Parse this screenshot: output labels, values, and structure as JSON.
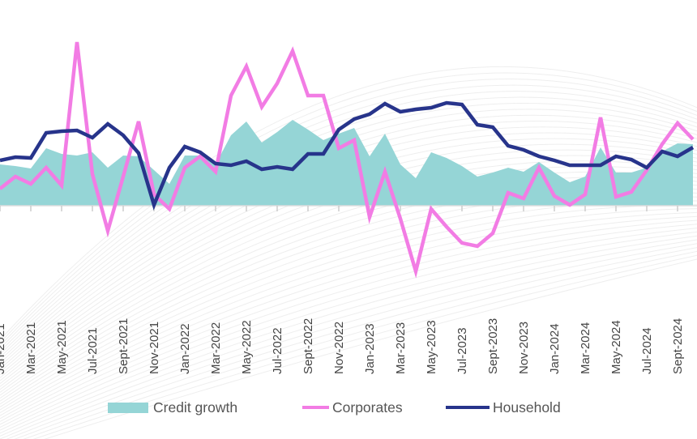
{
  "chart_data": {
    "type": "line",
    "title": "",
    "xlabel": "",
    "ylabel": "",
    "grid": false,
    "legend_position": "bottom",
    "categories": [
      "Jan-2021",
      "Feb-2021",
      "Mar-2021",
      "Apr-2021",
      "May-2021",
      "Jun-2021",
      "Jul-2021",
      "Aug-2021",
      "Sept-2021",
      "Oct-2021",
      "Nov-2021",
      "Dec-2021",
      "Jan-2022",
      "Feb-2022",
      "Mar-2022",
      "Apr-2022",
      "May-2022",
      "Jun-2022",
      "Jul-2022",
      "Aug-2022",
      "Sept-2022",
      "Oct-2022",
      "Nov-2022",
      "Dec-2022",
      "Jan-2023",
      "Feb-2023",
      "Mar-2023",
      "Apr-2023",
      "May-2023",
      "Jun-2023",
      "Jul-2023",
      "Aug-2023",
      "Sept-2023",
      "Oct-2023",
      "Nov-2023",
      "Dec-2023",
      "Jan-2024",
      "Feb-2024",
      "Mar-2024",
      "Apr-2024",
      "May-2024",
      "Jun-2024",
      "Jul-2024",
      "Aug-2024",
      "Sept-2024",
      "Oct-2024"
    ],
    "tick_labels": [
      "Jan-2021",
      "Mar-2021",
      "May-2021",
      "Jul-2021",
      "Sept-2021",
      "Nov-2021",
      "Jan-2022",
      "Mar-2022",
      "May-2022",
      "Jul-2022",
      "Sept-2022",
      "Nov-2022",
      "Jan-2023",
      "Mar-2023",
      "May-2023",
      "Jul-2023",
      "Sept-2023",
      "Nov-2023",
      "Jan-2024",
      "Mar-2024",
      "May-2024",
      "Jul-2024",
      "Sept-2024"
    ],
    "ylim": [
      -20,
      25
    ],
    "series": [
      {
        "name": "Credit growth",
        "kind": "area",
        "color": "#95d5d6",
        "values": [
          5.1,
          4.9,
          4.6,
          7.1,
          6.4,
          6.2,
          6.6,
          4.7,
          6.2,
          6.1,
          4.4,
          2.7,
          6.2,
          6.2,
          5.1,
          8.7,
          10.4,
          7.8,
          9.1,
          10.6,
          9.4,
          8.1,
          8.9,
          9.6,
          6.1,
          8.9,
          5.1,
          3.4,
          6.6,
          5.9,
          4.9,
          3.6,
          4.1,
          4.7,
          4.2,
          5.4,
          4.1,
          2.9,
          3.6,
          7.2,
          4.1,
          4.1,
          4.7,
          6.7,
          7.7,
          7.6
        ]
      },
      {
        "name": "Corporates",
        "kind": "line",
        "color": "#f27ce4",
        "values": [
          2.1,
          3.6,
          2.7,
          4.7,
          2.5,
          20.2,
          3.9,
          -3.1,
          3.6,
          10.4,
          1.4,
          -0.4,
          4.7,
          6.1,
          4.2,
          13.6,
          17.2,
          12.2,
          15.1,
          19.1,
          13.6,
          13.6,
          7.1,
          8.1,
          -1.4,
          4.2,
          -1.6,
          -8.1,
          -0.4,
          -2.6,
          -4.6,
          -5.0,
          -3.4,
          1.6,
          0.9,
          4.7,
          1.2,
          0.1,
          1.4,
          10.9,
          1.1,
          1.7,
          4.4,
          7.6,
          10.2,
          8.2
        ]
      },
      {
        "name": "Household",
        "kind": "line",
        "color": "#27348b",
        "values": [
          5.6,
          6.0,
          5.9,
          9.0,
          9.2,
          9.3,
          8.4,
          10.1,
          8.7,
          6.5,
          0.1,
          4.7,
          7.3,
          6.6,
          5.2,
          5.0,
          5.5,
          4.5,
          4.8,
          4.5,
          6.4,
          6.4,
          9.4,
          10.7,
          11.3,
          12.6,
          11.6,
          11.9,
          12.1,
          12.7,
          12.5,
          10.0,
          9.7,
          7.4,
          6.9,
          6.1,
          5.6,
          5.0,
          5.0,
          5.0,
          6.1,
          5.7,
          4.7,
          6.7,
          6.1,
          7.2
        ]
      }
    ]
  }
}
